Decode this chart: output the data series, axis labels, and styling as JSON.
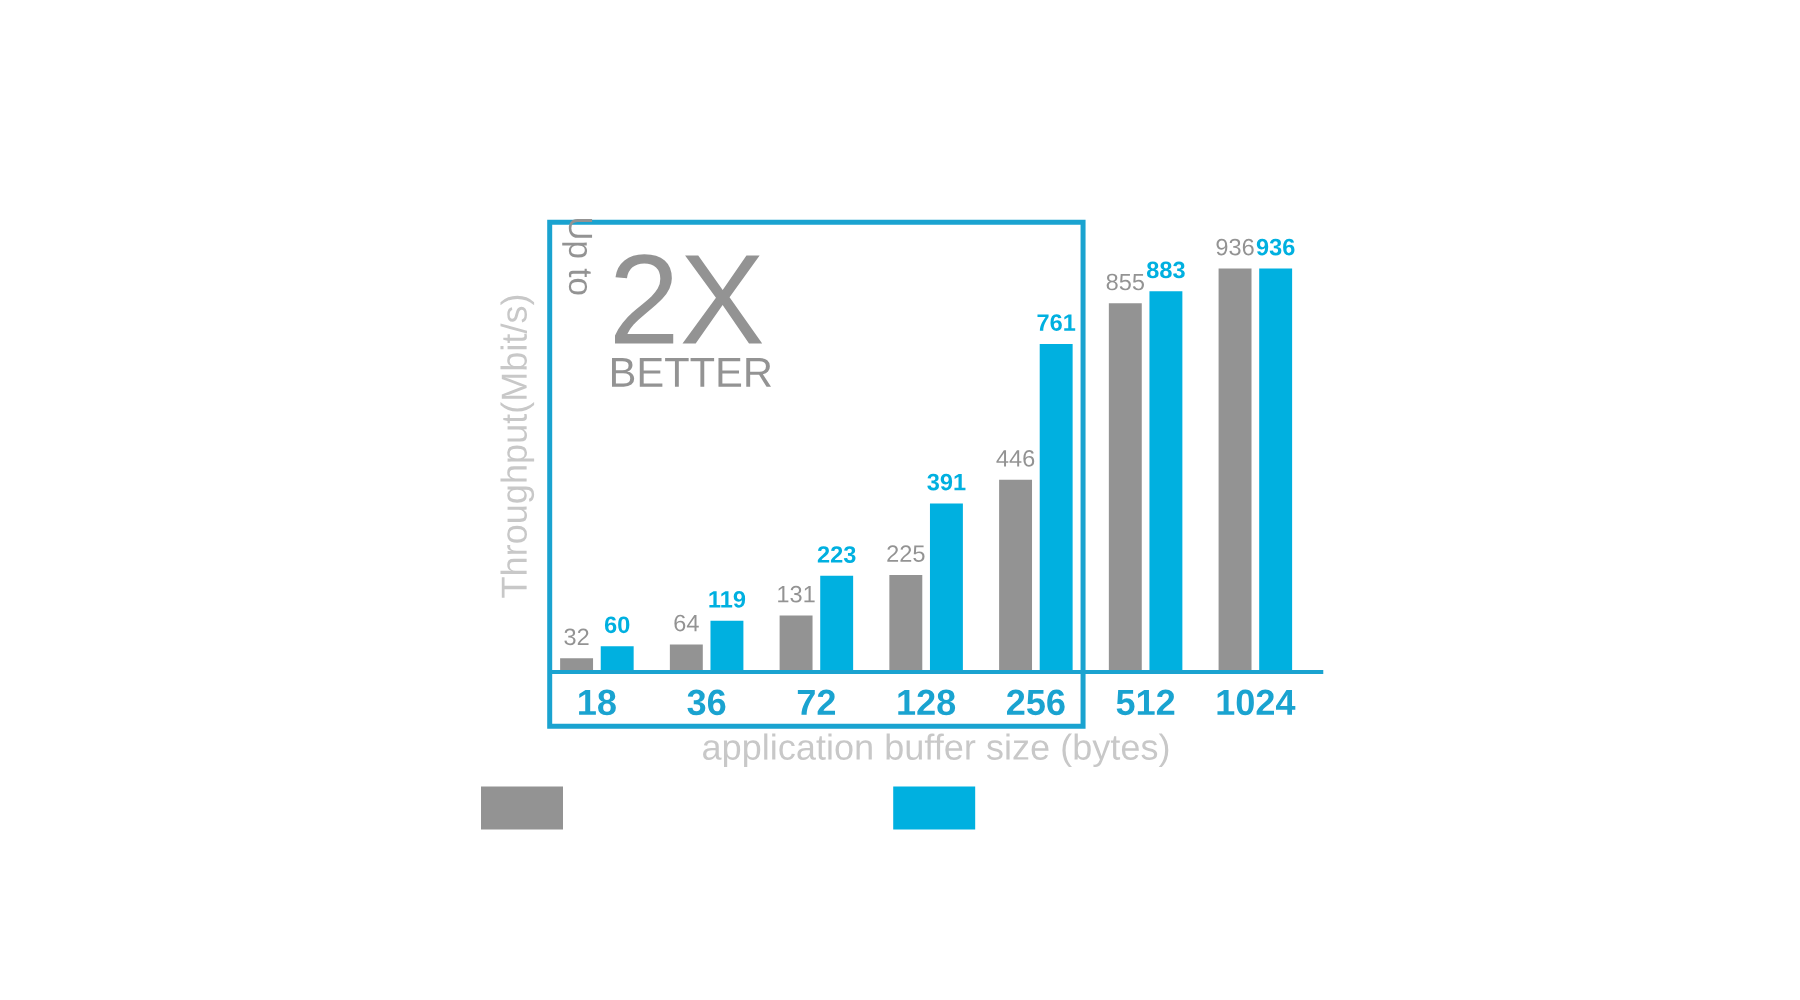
{
  "chart_data": {
    "type": "bar",
    "categories": [
      "18",
      "36",
      "72",
      "128",
      "256",
      "512",
      "1024"
    ],
    "series": [
      {
        "color": "#939393",
        "values": [
          32,
          64,
          131,
          225,
          446,
          855,
          936
        ]
      },
      {
        "color": "#00b0e0",
        "values": [
          60,
          119,
          223,
          391,
          761,
          883,
          936
        ]
      }
    ],
    "xlabel": "application buffer size (bytes)",
    "ylabel": "Throughput(Mbit/s)",
    "annotations": [
      "Up to",
      "2X",
      "BETTER"
    ],
    "data_labels": true,
    "grid": false
  }
}
